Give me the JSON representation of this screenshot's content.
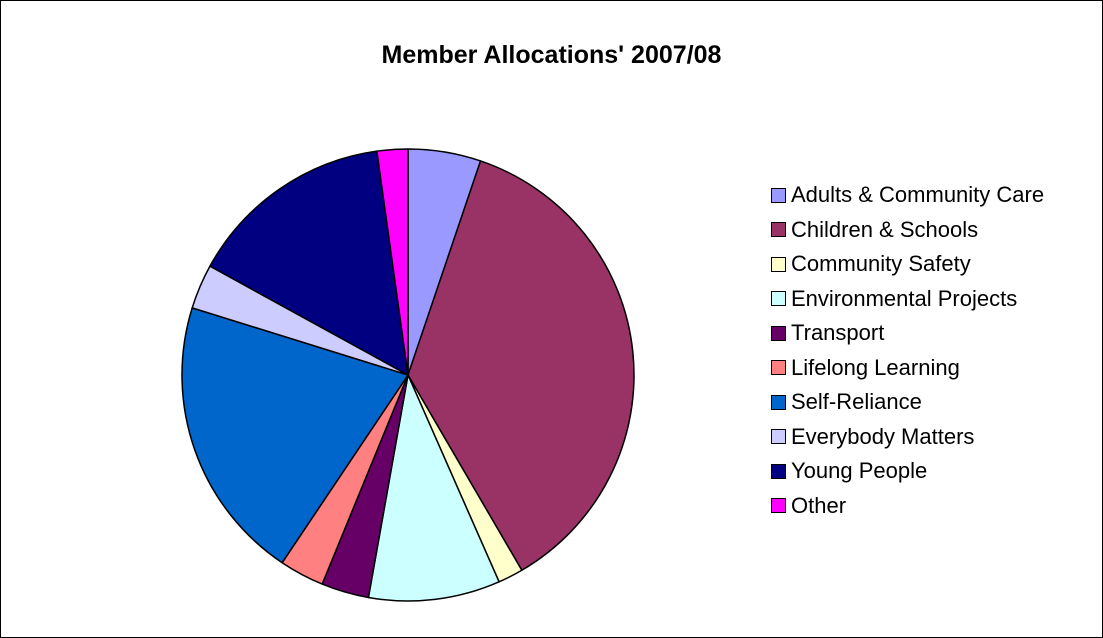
{
  "chart_data": {
    "type": "pie",
    "title": "Member Allocations' 2007/08",
    "legend_position": "right",
    "slices": [
      {
        "label": "Adults & Community Care",
        "value": 5.2,
        "color": "#9999ff"
      },
      {
        "label": "Children & Schools",
        "value": 36.4,
        "color": "#993366"
      },
      {
        "label": "Community Safety",
        "value": 1.8,
        "color": "#ffffcc"
      },
      {
        "label": "Environmental Projects",
        "value": 9.4,
        "color": "#ccffff"
      },
      {
        "label": "Transport",
        "value": 3.4,
        "color": "#660066"
      },
      {
        "label": "Lifelong Learning",
        "value": 3.2,
        "color": "#ff8080"
      },
      {
        "label": "Self-Reliance",
        "value": 20.4,
        "color": "#0066cc"
      },
      {
        "label": "Everybody Matters",
        "value": 3.2,
        "color": "#ccccff"
      },
      {
        "label": "Young People",
        "value": 14.8,
        "color": "#000080"
      },
      {
        "label": "Other",
        "value": 2.2,
        "color": "#ff00ff"
      }
    ]
  }
}
